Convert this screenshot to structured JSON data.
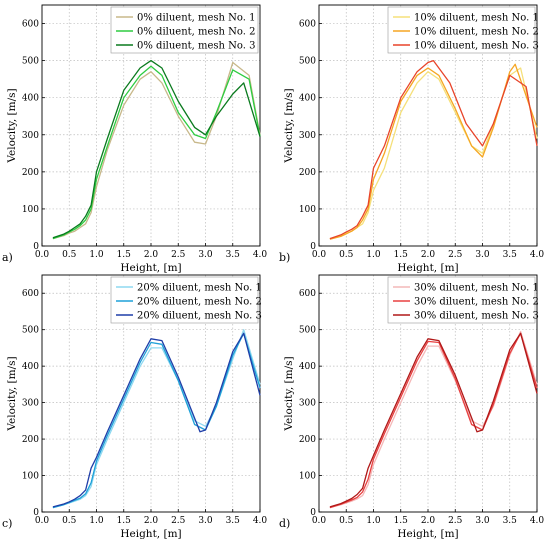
{
  "chart_data": [
    {
      "type": "line",
      "panel_label": "a)",
      "xlabel": "Height, [m]",
      "ylabel": "Velocity, [m/s]",
      "xlim": [
        0.0,
        4.0
      ],
      "ylim": [
        0,
        650
      ],
      "xticks": [
        "0.0",
        "0.5",
        "1.0",
        "1.5",
        "2.0",
        "2.5",
        "3.0",
        "3.5",
        "4.0"
      ],
      "yticks": [
        "0",
        "100",
        "200",
        "300",
        "400",
        "500",
        "600"
      ],
      "grid": true,
      "legend_position": "top-right",
      "series": [
        {
          "name": "0% diluent, mesh No. 1",
          "color": "#c8b88a",
          "x": [
            0.2,
            0.4,
            0.5,
            0.6,
            0.7,
            0.8,
            0.9,
            1.0,
            1.2,
            1.5,
            1.8,
            2.0,
            2.2,
            2.5,
            2.8,
            3.0,
            3.2,
            3.5,
            3.8,
            4.0
          ],
          "y": [
            20,
            28,
            35,
            40,
            50,
            60,
            90,
            160,
            260,
            380,
            450,
            470,
            440,
            350,
            280,
            275,
            350,
            495,
            460,
            300
          ]
        },
        {
          "name": "0% diluent, mesh No. 2",
          "color": "#2ecc40",
          "x": [
            0.2,
            0.4,
            0.5,
            0.6,
            0.7,
            0.8,
            0.9,
            1.0,
            1.2,
            1.5,
            1.8,
            2.0,
            2.2,
            2.5,
            2.8,
            3.0,
            3.2,
            3.5,
            3.8,
            4.0
          ],
          "y": [
            20,
            30,
            38,
            45,
            55,
            70,
            100,
            180,
            270,
            400,
            460,
            485,
            460,
            360,
            300,
            290,
            360,
            475,
            450,
            295
          ]
        },
        {
          "name": "0% diluent, mesh No. 3",
          "color": "#0a7a1e",
          "x": [
            0.2,
            0.4,
            0.5,
            0.6,
            0.7,
            0.8,
            0.9,
            1.0,
            1.2,
            1.5,
            1.8,
            2.0,
            2.2,
            2.5,
            2.8,
            3.0,
            3.2,
            3.5,
            3.7,
            4.0
          ],
          "y": [
            22,
            32,
            40,
            50,
            60,
            80,
            110,
            200,
            290,
            420,
            480,
            500,
            480,
            390,
            320,
            300,
            350,
            410,
            440,
            295
          ]
        }
      ]
    },
    {
      "type": "line",
      "panel_label": "b)",
      "xlabel": "Height, [m]",
      "ylabel": "Velocity, [m/s]",
      "xlim": [
        0.0,
        4.0
      ],
      "ylim": [
        0,
        650
      ],
      "xticks": [
        "0.0",
        "0.5",
        "1.0",
        "1.5",
        "2.0",
        "2.5",
        "3.0",
        "3.5",
        "4.0"
      ],
      "yticks": [
        "0",
        "100",
        "200",
        "300",
        "400",
        "500",
        "600"
      ],
      "grid": true,
      "legend_position": "top-right",
      "series": [
        {
          "name": "10% diluent, mesh No. 1",
          "color": "#f5e07a",
          "x": [
            0.2,
            0.4,
            0.5,
            0.6,
            0.7,
            0.8,
            0.9,
            1.0,
            1.2,
            1.5,
            1.8,
            2.0,
            2.2,
            2.5,
            2.8,
            3.0,
            3.2,
            3.5,
            3.7,
            4.0
          ],
          "y": [
            20,
            28,
            35,
            40,
            50,
            60,
            90,
            150,
            210,
            360,
            440,
            470,
            450,
            360,
            270,
            250,
            330,
            460,
            480,
            290
          ]
        },
        {
          "name": "10% diluent, mesh No. 2",
          "color": "#f5a623",
          "x": [
            0.2,
            0.4,
            0.5,
            0.6,
            0.7,
            0.8,
            0.9,
            1.0,
            1.2,
            1.5,
            1.8,
            2.0,
            2.2,
            2.5,
            2.8,
            3.0,
            3.2,
            3.5,
            3.6,
            4.0
          ],
          "y": [
            18,
            26,
            33,
            40,
            50,
            70,
            100,
            180,
            250,
            390,
            460,
            480,
            460,
            370,
            270,
            240,
            320,
            470,
            490,
            320
          ]
        },
        {
          "name": "10% diluent, mesh No. 3",
          "color": "#e8442a",
          "x": [
            0.2,
            0.4,
            0.5,
            0.6,
            0.7,
            0.8,
            0.9,
            1.0,
            1.2,
            1.5,
            1.8,
            2.0,
            2.1,
            2.4,
            2.7,
            3.0,
            3.2,
            3.5,
            3.8,
            4.0
          ],
          "y": [
            20,
            30,
            38,
            45,
            55,
            80,
            110,
            210,
            270,
            400,
            470,
            495,
            500,
            440,
            330,
            270,
            330,
            460,
            430,
            270
          ]
        }
      ]
    },
    {
      "type": "line",
      "panel_label": "c)",
      "xlabel": "Height, [m]",
      "ylabel": "Velocity, [m/s]",
      "xlim": [
        0.0,
        4.0
      ],
      "ylim": [
        0,
        650
      ],
      "xticks": [
        "0.0",
        "0.5",
        "1.0",
        "1.5",
        "2.0",
        "2.5",
        "3.0",
        "3.5",
        "4.0"
      ],
      "yticks": [
        "0",
        "100",
        "200",
        "300",
        "400",
        "500",
        "600"
      ],
      "grid": true,
      "legend_position": "top-right",
      "series": [
        {
          "name": "20% diluent, mesh No. 1",
          "color": "#8ed8f0",
          "x": [
            0.2,
            0.4,
            0.5,
            0.6,
            0.7,
            0.8,
            0.9,
            1.0,
            1.2,
            1.5,
            1.8,
            2.0,
            2.2,
            2.5,
            2.8,
            3.0,
            3.2,
            3.5,
            3.7,
            4.0
          ],
          "y": [
            12,
            20,
            25,
            30,
            35,
            45,
            70,
            130,
            200,
            300,
            400,
            450,
            450,
            360,
            250,
            235,
            290,
            420,
            500,
            350
          ]
        },
        {
          "name": "20% diluent, mesh No. 2",
          "color": "#1ea0d8",
          "x": [
            0.2,
            0.4,
            0.5,
            0.6,
            0.7,
            0.8,
            0.9,
            1.0,
            1.2,
            1.5,
            1.8,
            2.0,
            2.2,
            2.5,
            2.8,
            3.0,
            3.2,
            3.5,
            3.7,
            4.0
          ],
          "y": [
            12,
            20,
            26,
            32,
            38,
            50,
            80,
            140,
            210,
            310,
            410,
            465,
            460,
            360,
            240,
            225,
            290,
            430,
            490,
            340
          ]
        },
        {
          "name": "20% diluent, mesh No. 3",
          "color": "#1f3ea8",
          "x": [
            0.2,
            0.4,
            0.5,
            0.6,
            0.7,
            0.8,
            0.9,
            1.0,
            1.2,
            1.5,
            1.8,
            2.0,
            2.2,
            2.5,
            2.9,
            3.0,
            3.2,
            3.5,
            3.7,
            4.0
          ],
          "y": [
            14,
            22,
            28,
            35,
            45,
            60,
            120,
            150,
            220,
            320,
            420,
            475,
            470,
            370,
            220,
            225,
            300,
            440,
            490,
            320
          ]
        }
      ]
    },
    {
      "type": "line",
      "panel_label": "d)",
      "xlabel": "Height, [m]",
      "ylabel": "Velocity, [m/s]",
      "xlim": [
        0.0,
        4.0
      ],
      "ylim": [
        0,
        650
      ],
      "xticks": [
        "0.0",
        "0.5",
        "1.0",
        "1.5",
        "2.0",
        "2.5",
        "3.0",
        "3.5",
        "4.0"
      ],
      "yticks": [
        "0",
        "100",
        "200",
        "300",
        "400",
        "500",
        "600"
      ],
      "grid": true,
      "legend_position": "top-right",
      "series": [
        {
          "name": "30% diluent, mesh No. 1",
          "color": "#f4b8b8",
          "x": [
            0.2,
            0.4,
            0.5,
            0.6,
            0.7,
            0.8,
            0.9,
            1.0,
            1.2,
            1.5,
            1.8,
            2.0,
            2.2,
            2.5,
            2.8,
            3.0,
            3.2,
            3.5,
            3.7,
            4.0
          ],
          "y": [
            12,
            20,
            25,
            30,
            36,
            45,
            75,
            130,
            200,
            300,
            400,
            455,
            455,
            360,
            250,
            235,
            290,
            430,
            495,
            350
          ]
        },
        {
          "name": "30% diluent, mesh No. 2",
          "color": "#e84040",
          "x": [
            0.2,
            0.4,
            0.5,
            0.6,
            0.7,
            0.8,
            0.9,
            1.0,
            1.2,
            1.5,
            1.8,
            2.0,
            2.2,
            2.5,
            2.8,
            3.0,
            3.2,
            3.5,
            3.7,
            4.0
          ],
          "y": [
            12,
            21,
            27,
            33,
            40,
            55,
            90,
            145,
            215,
            315,
            415,
            468,
            465,
            365,
            240,
            225,
            295,
            435,
            490,
            340
          ]
        },
        {
          "name": "30% diluent, mesh No. 3",
          "color": "#b01818",
          "x": [
            0.2,
            0.4,
            0.5,
            0.6,
            0.7,
            0.8,
            0.9,
            1.0,
            1.2,
            1.5,
            1.8,
            2.0,
            2.2,
            2.5,
            2.9,
            3.0,
            3.2,
            3.5,
            3.7,
            4.0
          ],
          "y": [
            14,
            23,
            30,
            37,
            48,
            65,
            120,
            155,
            225,
            325,
            425,
            475,
            470,
            375,
            220,
            225,
            305,
            445,
            490,
            325
          ]
        }
      ]
    }
  ]
}
